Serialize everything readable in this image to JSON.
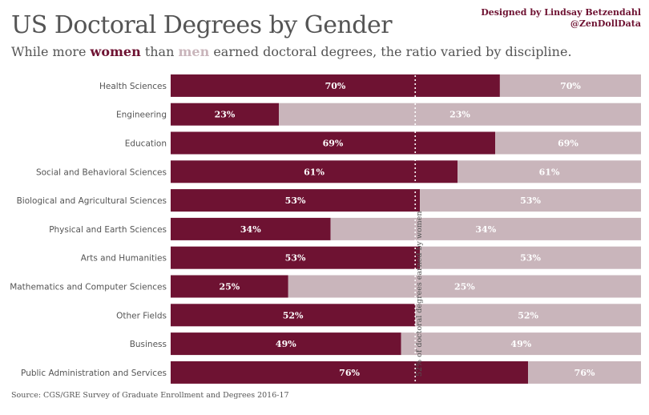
{
  "title": "US Doctoral Degrees by Gender",
  "subtitle": {
    "before": "While more ",
    "women": "women",
    "middle": " than ",
    "men": "men",
    "after": " earned doctoral degrees, the ratio varied by discipline."
  },
  "credit": {
    "line1": "Designed by Lindsay Betzendahl",
    "line2": "@ZenDollData"
  },
  "source": "Source: CGS/GRE Survey of Graduate Enrollment and Degrees 2016-17",
  "colors": {
    "women": "#6e1232",
    "men": "#c9b5bb",
    "reference": "#ffffff"
  },
  "chart_data": {
    "type": "bar",
    "orientation": "horizontal",
    "stacked": true,
    "xlim": [
      0,
      100
    ],
    "categories": [
      "Health Sciences",
      "Engineering",
      "Education",
      "Social and Behavioral Sciences",
      "Biological and Agricultural Sciences",
      "Physical and Earth Sciences",
      "Arts and Humanities",
      "Mathematics and Computer Sciences",
      "Other Fields",
      "Business",
      "Public Administration and Services"
    ],
    "series": [
      {
        "name": "women",
        "values": [
          70,
          23,
          69,
          61,
          53,
          34,
          53,
          25,
          52,
          49,
          76
        ]
      }
    ],
    "value_labels": [
      "70%",
      "23%",
      "69%",
      "61%",
      "53%",
      "34%",
      "53%",
      "25%",
      "52%",
      "49%",
      "76%"
    ],
    "reference_line": {
      "value": 52,
      "label": "52% of doctoral degrees earned by women"
    }
  }
}
